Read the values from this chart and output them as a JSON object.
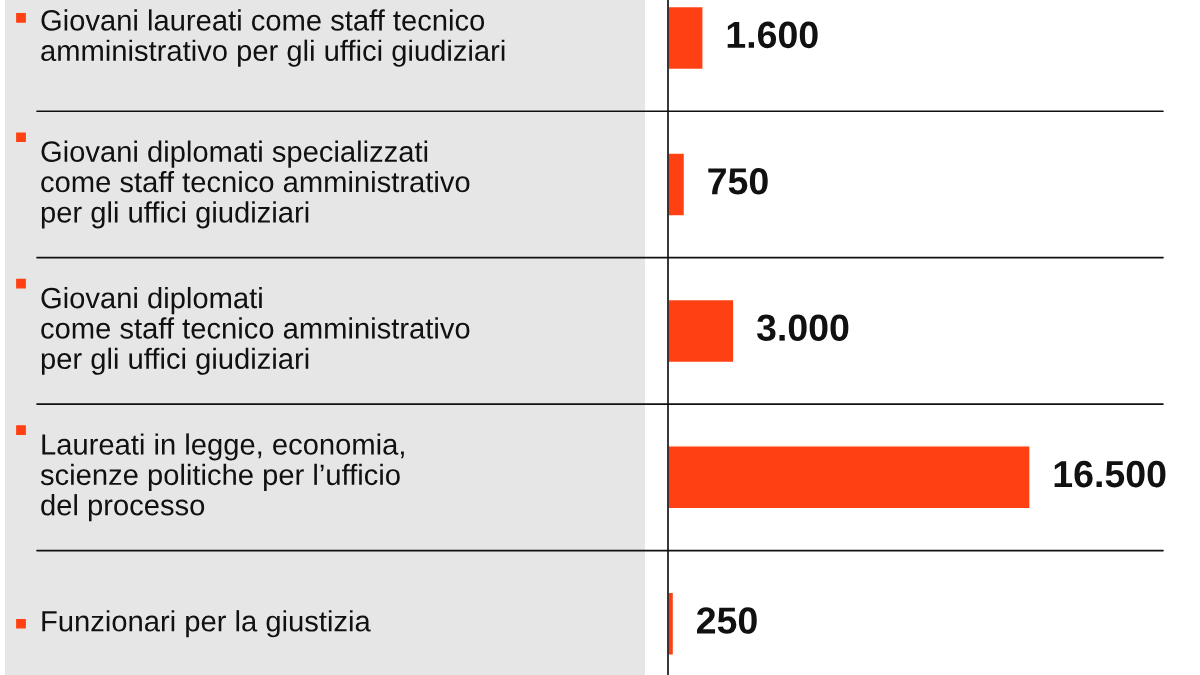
{
  "chart_data": {
    "type": "bar",
    "orientation": "horizontal",
    "categories": [
      "Giovani laureati come staff tecnico\namministrativo per gli uffici giudiziari",
      "Giovani diplomati specializzati\ncome staff tecnico amministrativo\nper gli uffici giudiziari",
      "Giovani diplomati\ncome staff tecnico amministrativo\nper gli uffici giudiziari",
      "Laureati in legge, economia,\nscienze politiche per l’ufficio\ndel processo",
      "Funzionari per la giustizia"
    ],
    "values": [
      1600,
      750,
      3000,
      16500,
      250
    ],
    "color": "#ff4013",
    "xlim": [
      0,
      22650
    ],
    "value_labels": [
      "1.600",
      "750",
      "3.000",
      "16.500",
      "250"
    ]
  }
}
